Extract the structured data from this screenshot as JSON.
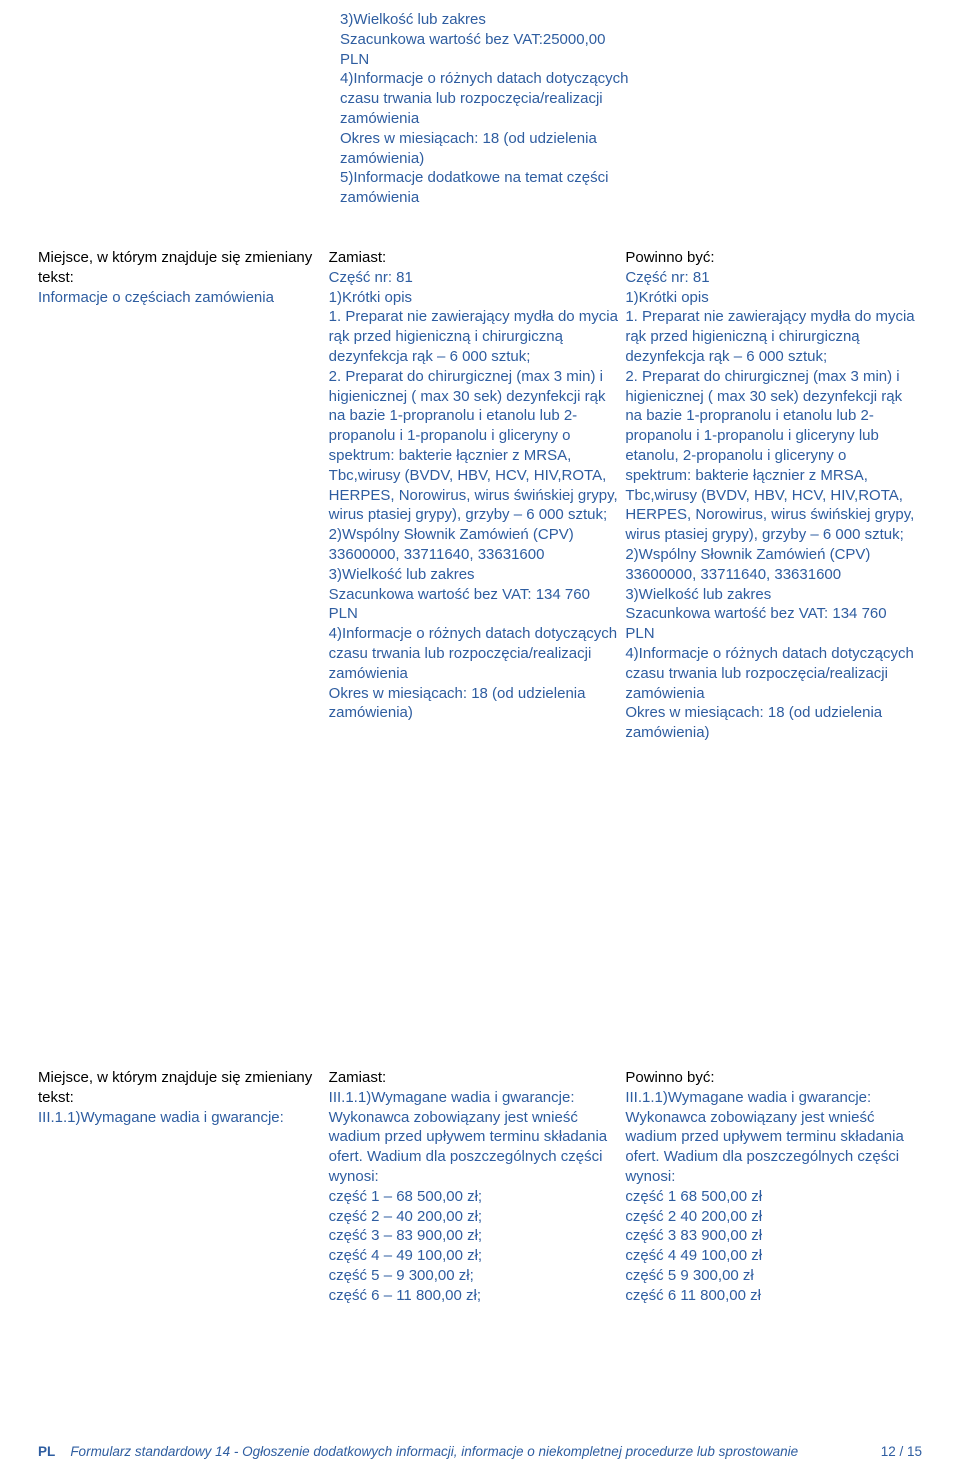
{
  "topblock": {
    "l1": "3)Wielkość lub zakres",
    "l2": "Szacunkowa wartość bez VAT:25000,00",
    "l3": "PLN",
    "l4": "4)Informacje o różnych datach dotyczących czasu trwania lub rozpoczęcia/realizacji zamówienia",
    "l5": "Okres w miesiącach: 18 (od udzielenia zamówienia)",
    "l6": "5)Informacje dodatkowe na temat części zamówienia"
  },
  "section1": {
    "left": {
      "heading": "Miejsce, w którym znajduje się zmieniany tekst:",
      "value": "Informacje o częściach zamówienia"
    },
    "mid": {
      "heading": "Zamiast:",
      "body": "Część nr: 81\n1)Krótki opis\n1. Preparat nie zawierający mydła do mycia rąk przed higieniczną i chirurgiczną dezynfekcja rąk – 6 000 sztuk;\n2. Preparat do chirurgicznej (max 3 min) i higienicznej ( max 30 sek) dezynfekcji rąk na bazie 1-propranolu i etanolu lub 2-propanolu i 1-propanolu i gliceryny o spektrum: bakterie łącznier z MRSA, Tbc,wirusy (BVDV, HBV, HCV, HIV,ROTA, HERPES, Norowirus, wirus świńskiej grypy, wirus ptasiej grypy), grzyby – 6 000 sztuk;\n2)Wspólny Słownik Zamówień (CPV)\n33600000, 33711640, 33631600\n3)Wielkość lub zakres\nSzacunkowa wartość bez VAT: 134 760 PLN\n4)Informacje o różnych datach dotyczących czasu trwania lub rozpoczęcia/realizacji zamówienia\nOkres w miesiącach: 18 (od udzielenia zamówienia)"
    },
    "right": {
      "heading": "Powinno być:",
      "body": "Część nr: 81\n1)Krótki opis\n1. Preparat nie zawierający mydła do mycia rąk przed higieniczną i chirurgiczną dezynfekcja rąk – 6 000 sztuk;\n2. Preparat do chirurgicznej (max 3 min) i higienicznej ( max 30 sek) dezynfekcji rąk na bazie 1-propranolu i etanolu lub 2-propanolu i 1-propanolu i gliceryny lub etanolu, 2-propanolu i gliceryny o spektrum: bakterie łącznier z MRSA, Tbc,wirusy (BVDV, HBV, HCV, HIV,ROTA, HERPES, Norowirus, wirus świńskiej grypy, wirus ptasiej grypy), grzyby – 6 000 sztuk;\n2)Wspólny Słownik Zamówień (CPV)\n33600000, 33711640, 33631600\n3)Wielkość lub zakres\nSzacunkowa wartość bez VAT: 134 760 PLN\n4)Informacje o różnych datach dotyczących czasu trwania lub rozpoczęcia/realizacji zamówienia\nOkres w miesiącach: 18 (od udzielenia zamówienia)"
    }
  },
  "section2": {
    "left": {
      "heading": "Miejsce, w którym znajduje się zmieniany tekst:",
      "value": "III.1.1)Wymagane wadia i gwarancje:"
    },
    "mid": {
      "heading": "Zamiast:",
      "body": "III.1.1)Wymagane wadia i gwarancje:\nWykonawca zobowiązany jest wnieść wadium przed upływem terminu składania ofert. Wadium dla poszczególnych części wynosi:\nczęść 1 – 68 500,00 zł;\nczęść 2 – 40 200,00 zł;\nczęść 3 – 83 900,00 zł;\nczęść 4 – 49 100,00 zł;\nczęść 5 – 9 300,00 zł;\nczęść 6 – 11 800,00 zł;"
    },
    "right": {
      "heading": "Powinno być:",
      "body": "III.1.1)Wymagane wadia i gwarancje:\nWykonawca zobowiązany jest wnieść wadium przed upływem terminu składania ofert. Wadium dla poszczególnych części wynosi:\nczęść 1 68 500,00 zł\nczęść 2 40 200,00 zł\nczęść 3 83 900,00 zł\nczęść 4 49 100,00 zł\nczęść 5 9 300,00 zł\nczęść 6 11 800,00 zł"
    }
  },
  "footer": {
    "pl": "PL",
    "title": "Formularz standardowy 14 - Ogłoszenie dodatkowych informacji, informacje o niekompletnej procedurze lub sprostowanie",
    "pageno": "12 / 15"
  }
}
